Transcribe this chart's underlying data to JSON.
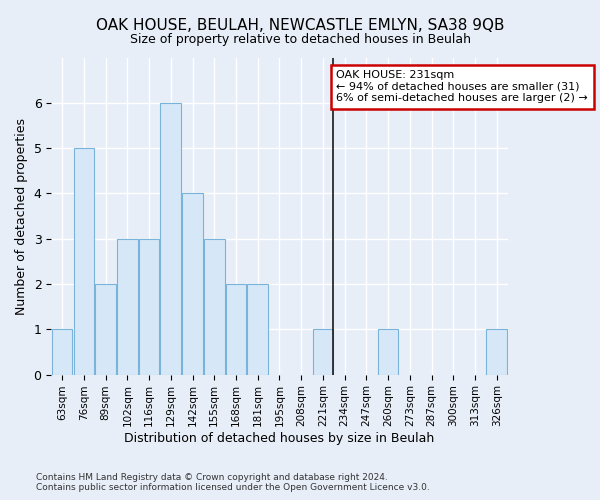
{
  "title": "OAK HOUSE, BEULAH, NEWCASTLE EMLYN, SA38 9QB",
  "subtitle": "Size of property relative to detached houses in Beulah",
  "xlabel": "Distribution of detached houses by size in Beulah",
  "ylabel": "Number of detached properties",
  "bin_labels": [
    "63sqm",
    "76sqm",
    "89sqm",
    "102sqm",
    "116sqm",
    "129sqm",
    "142sqm",
    "155sqm",
    "168sqm",
    "181sqm",
    "195sqm",
    "208sqm",
    "221sqm",
    "234sqm",
    "247sqm",
    "260sqm",
    "273sqm",
    "287sqm",
    "300sqm",
    "313sqm",
    "326sqm"
  ],
  "bar_heights": [
    1,
    5,
    2,
    3,
    3,
    6,
    4,
    3,
    2,
    2,
    0,
    0,
    1,
    0,
    0,
    1,
    0,
    0,
    0,
    0,
    1
  ],
  "bar_color": "#d6e8f7",
  "bar_edge_color": "#7ab3d9",
  "highlight_line_color": "#1a1a1a",
  "annotation_text": "OAK HOUSE: 231sqm\n← 94% of detached houses are smaller (31)\n6% of semi-detached houses are larger (2) →",
  "annotation_box_color": "#ffffff",
  "annotation_box_edge": "#cc0000",
  "ylim": [
    0,
    7
  ],
  "yticks": [
    0,
    1,
    2,
    3,
    4,
    5,
    6,
    7
  ],
  "footnote": "Contains HM Land Registry data © Crown copyright and database right 2024.\nContains public sector information licensed under the Open Government Licence v3.0.",
  "bg_color": "#e8eef8"
}
